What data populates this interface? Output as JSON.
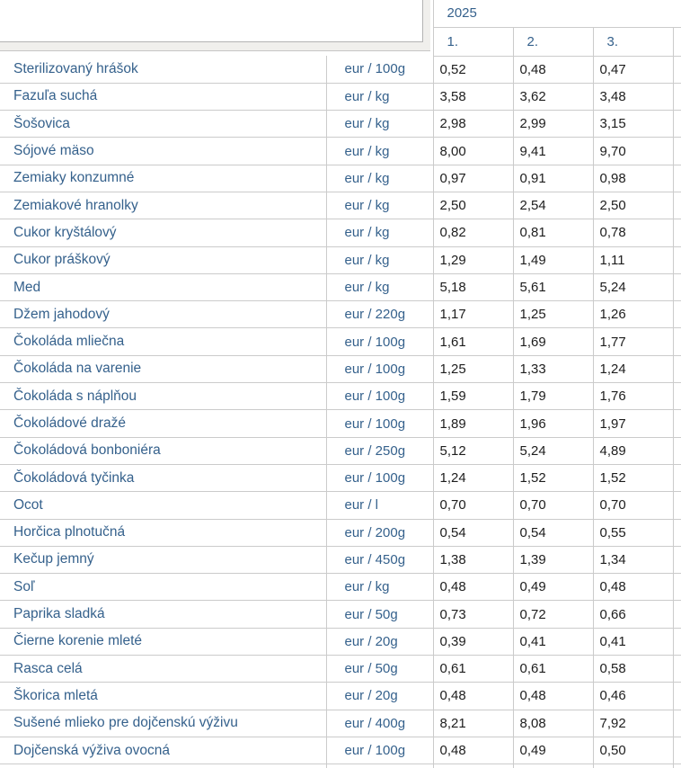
{
  "header": {
    "year": "2025",
    "months": [
      "1.",
      "2.",
      "3."
    ]
  },
  "colors": {
    "accent_blue": "#35618C",
    "value_text": "#1D1D1D",
    "border": "#CBCBCB",
    "bevel_fill": "#F0EFEC"
  },
  "rows": [
    {
      "name": "Sterilizovaný hrášok",
      "unit": "eur / 100g",
      "values": [
        "0,52",
        "0,48",
        "0,47"
      ]
    },
    {
      "name": "Fazuľa suchá",
      "unit": "eur / kg",
      "values": [
        "3,58",
        "3,62",
        "3,48"
      ]
    },
    {
      "name": "Šošovica",
      "unit": "eur / kg",
      "values": [
        "2,98",
        "2,99",
        "3,15"
      ]
    },
    {
      "name": "Sójové mäso",
      "unit": "eur / kg",
      "values": [
        "8,00",
        "9,41",
        "9,70"
      ]
    },
    {
      "name": "Zemiaky konzumné",
      "unit": "eur / kg",
      "values": [
        "0,97",
        "0,91",
        "0,98"
      ]
    },
    {
      "name": "Zemiakové hranolky",
      "unit": "eur / kg",
      "values": [
        "2,50",
        "2,54",
        "2,50"
      ]
    },
    {
      "name": "Cukor kryštálový",
      "unit": "eur / kg",
      "values": [
        "0,82",
        "0,81",
        "0,78"
      ]
    },
    {
      "name": "Cukor práškový",
      "unit": "eur / kg",
      "values": [
        "1,29",
        "1,49",
        "1,11"
      ]
    },
    {
      "name": "Med",
      "unit": "eur / kg",
      "values": [
        "5,18",
        "5,61",
        "5,24"
      ]
    },
    {
      "name": "Džem jahodový",
      "unit": "eur / 220g",
      "values": [
        "1,17",
        "1,25",
        "1,26"
      ]
    },
    {
      "name": "Čokoláda mliečna",
      "unit": "eur / 100g",
      "values": [
        "1,61",
        "1,69",
        "1,77"
      ]
    },
    {
      "name": "Čokoláda na varenie",
      "unit": "eur / 100g",
      "values": [
        "1,25",
        "1,33",
        "1,24"
      ]
    },
    {
      "name": "Čokoláda s náplňou",
      "unit": "eur / 100g",
      "values": [
        "1,59",
        "1,79",
        "1,76"
      ]
    },
    {
      "name": "Čokoládové dražé",
      "unit": "eur / 100g",
      "values": [
        "1,89",
        "1,96",
        "1,97"
      ]
    },
    {
      "name": "Čokoládová bonboniéra",
      "unit": "eur / 250g",
      "values": [
        "5,12",
        "5,24",
        "4,89"
      ]
    },
    {
      "name": "Čokoládová tyčinka",
      "unit": "eur / 100g",
      "values": [
        "1,24",
        "1,52",
        "1,52"
      ]
    },
    {
      "name": "Ocot",
      "unit": "eur / l",
      "values": [
        "0,70",
        "0,70",
        "0,70"
      ]
    },
    {
      "name": "Horčica plnotučná",
      "unit": "eur / 200g",
      "values": [
        "0,54",
        "0,54",
        "0,55"
      ]
    },
    {
      "name": "Kečup jemný",
      "unit": "eur / 450g",
      "values": [
        "1,38",
        "1,39",
        "1,34"
      ]
    },
    {
      "name": "Soľ",
      "unit": "eur / kg",
      "values": [
        "0,48",
        "0,49",
        "0,48"
      ]
    },
    {
      "name": "Paprika sladká",
      "unit": "eur / 50g",
      "values": [
        "0,73",
        "0,72",
        "0,66"
      ]
    },
    {
      "name": "Čierne korenie mleté",
      "unit": "eur / 20g",
      "values": [
        "0,39",
        "0,41",
        "0,41"
      ]
    },
    {
      "name": "Rasca celá",
      "unit": "eur / 50g",
      "values": [
        "0,61",
        "0,61",
        "0,58"
      ]
    },
    {
      "name": "Škorica mletá",
      "unit": "eur / 20g",
      "values": [
        "0,48",
        "0,48",
        "0,46"
      ]
    },
    {
      "name": "Sušené mlieko pre dojčenskú výživu",
      "unit": "eur / 400g",
      "values": [
        "8,21",
        "8,08",
        "7,92"
      ]
    },
    {
      "name": "Dojčenská výživa ovocná",
      "unit": "eur / 100g",
      "values": [
        "0,48",
        "0,49",
        "0,50"
      ]
    }
  ]
}
